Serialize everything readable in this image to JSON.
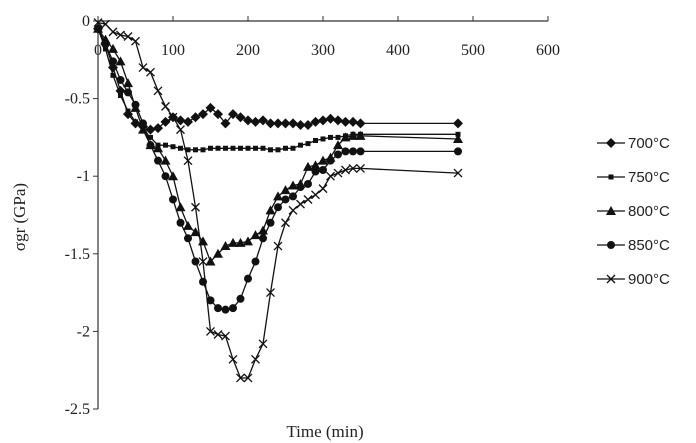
{
  "chart_data": {
    "type": "line",
    "xlabel": "Time (min)",
    "ylabel": "σgr (GPa)",
    "xlim": [
      0,
      600
    ],
    "ylim": [
      -2.5,
      0
    ],
    "xticks": [
      "0",
      "100",
      "200",
      "300",
      "400",
      "500",
      "600"
    ],
    "yticks": [
      "0",
      "-0.5",
      "-1",
      "-1.5",
      "-2",
      "-2.5"
    ],
    "legend_position": "right",
    "series": [
      {
        "name": "700°C",
        "marker": "diamond",
        "points": [
          [
            0,
            -0.05
          ],
          [
            10,
            -0.15
          ],
          [
            20,
            -0.3
          ],
          [
            30,
            -0.45
          ],
          [
            40,
            -0.6
          ],
          [
            50,
            -0.66
          ],
          [
            60,
            -0.68
          ],
          [
            70,
            -0.7
          ],
          [
            80,
            -0.69
          ],
          [
            90,
            -0.65
          ],
          [
            100,
            -0.62
          ],
          [
            110,
            -0.64
          ],
          [
            120,
            -0.65
          ],
          [
            130,
            -0.62
          ],
          [
            140,
            -0.6
          ],
          [
            150,
            -0.56
          ],
          [
            160,
            -0.6
          ],
          [
            170,
            -0.66
          ],
          [
            180,
            -0.6
          ],
          [
            190,
            -0.62
          ],
          [
            200,
            -0.64
          ],
          [
            210,
            -0.65
          ],
          [
            220,
            -0.64
          ],
          [
            230,
            -0.66
          ],
          [
            240,
            -0.66
          ],
          [
            250,
            -0.66
          ],
          [
            260,
            -0.66
          ],
          [
            270,
            -0.67
          ],
          [
            280,
            -0.67
          ],
          [
            290,
            -0.65
          ],
          [
            300,
            -0.64
          ],
          [
            310,
            -0.63
          ],
          [
            320,
            -0.64
          ],
          [
            330,
            -0.65
          ],
          [
            340,
            -0.65
          ],
          [
            350,
            -0.66
          ],
          [
            480,
            -0.66
          ]
        ]
      },
      {
        "name": "750°C",
        "marker": "square",
        "points": [
          [
            0,
            -0.05
          ],
          [
            10,
            -0.18
          ],
          [
            20,
            -0.35
          ],
          [
            30,
            -0.48
          ],
          [
            40,
            -0.58
          ],
          [
            50,
            -0.65
          ],
          [
            60,
            -0.7
          ],
          [
            70,
            -0.75
          ],
          [
            80,
            -0.8
          ],
          [
            90,
            -0.8
          ],
          [
            100,
            -0.81
          ],
          [
            110,
            -0.82
          ],
          [
            120,
            -0.83
          ],
          [
            130,
            -0.83
          ],
          [
            140,
            -0.83
          ],
          [
            150,
            -0.82
          ],
          [
            160,
            -0.82
          ],
          [
            170,
            -0.82
          ],
          [
            180,
            -0.82
          ],
          [
            190,
            -0.82
          ],
          [
            200,
            -0.82
          ],
          [
            210,
            -0.82
          ],
          [
            220,
            -0.82
          ],
          [
            230,
            -0.83
          ],
          [
            240,
            -0.83
          ],
          [
            250,
            -0.82
          ],
          [
            260,
            -0.82
          ],
          [
            270,
            -0.8
          ],
          [
            280,
            -0.79
          ],
          [
            290,
            -0.77
          ],
          [
            300,
            -0.76
          ],
          [
            310,
            -0.75
          ],
          [
            320,
            -0.75
          ],
          [
            330,
            -0.74
          ],
          [
            340,
            -0.73
          ],
          [
            350,
            -0.73
          ],
          [
            480,
            -0.73
          ]
        ]
      },
      {
        "name": "800°C",
        "marker": "triangle",
        "points": [
          [
            0,
            -0.05
          ],
          [
            10,
            -0.12
          ],
          [
            20,
            -0.18
          ],
          [
            30,
            -0.26
          ],
          [
            40,
            -0.4
          ],
          [
            50,
            -0.56
          ],
          [
            60,
            -0.7
          ],
          [
            70,
            -0.8
          ],
          [
            80,
            -0.82
          ],
          [
            90,
            -0.9
          ],
          [
            100,
            -1.0
          ],
          [
            110,
            -1.2
          ],
          [
            120,
            -1.32
          ],
          [
            130,
            -1.36
          ],
          [
            140,
            -1.42
          ],
          [
            150,
            -1.55
          ],
          [
            160,
            -1.5
          ],
          [
            170,
            -1.45
          ],
          [
            180,
            -1.43
          ],
          [
            190,
            -1.43
          ],
          [
            200,
            -1.42
          ],
          [
            210,
            -1.38
          ],
          [
            220,
            -1.35
          ],
          [
            230,
            -1.22
          ],
          [
            240,
            -1.13
          ],
          [
            250,
            -1.09
          ],
          [
            260,
            -1.06
          ],
          [
            270,
            -1.05
          ],
          [
            280,
            -0.94
          ],
          [
            290,
            -0.93
          ],
          [
            300,
            -0.9
          ],
          [
            310,
            -0.88
          ],
          [
            320,
            -0.8
          ],
          [
            330,
            -0.75
          ],
          [
            340,
            -0.74
          ],
          [
            350,
            -0.74
          ],
          [
            480,
            -0.76
          ]
        ]
      },
      {
        "name": "850°C",
        "marker": "circle",
        "points": [
          [
            0,
            -0.05
          ],
          [
            10,
            -0.15
          ],
          [
            20,
            -0.26
          ],
          [
            30,
            -0.38
          ],
          [
            40,
            -0.46
          ],
          [
            50,
            -0.54
          ],
          [
            60,
            -0.66
          ],
          [
            70,
            -0.8
          ],
          [
            80,
            -0.9
          ],
          [
            90,
            -1.0
          ],
          [
            100,
            -1.15
          ],
          [
            110,
            -1.3
          ],
          [
            120,
            -1.4
          ],
          [
            130,
            -1.55
          ],
          [
            140,
            -1.68
          ],
          [
            150,
            -1.8
          ],
          [
            160,
            -1.85
          ],
          [
            170,
            -1.86
          ],
          [
            180,
            -1.85
          ],
          [
            190,
            -1.79
          ],
          [
            200,
            -1.66
          ],
          [
            210,
            -1.55
          ],
          [
            220,
            -1.4
          ],
          [
            230,
            -1.3
          ],
          [
            240,
            -1.2
          ],
          [
            250,
            -1.15
          ],
          [
            260,
            -1.13
          ],
          [
            270,
            -1.07
          ],
          [
            280,
            -1.05
          ],
          [
            290,
            -0.97
          ],
          [
            300,
            -0.96
          ],
          [
            310,
            -0.9
          ],
          [
            320,
            -0.86
          ],
          [
            330,
            -0.84
          ],
          [
            340,
            -0.84
          ],
          [
            350,
            -0.84
          ],
          [
            480,
            -0.84
          ]
        ]
      },
      {
        "name": "900°C",
        "marker": "x",
        "points": [
          [
            0,
            -0.01
          ],
          [
            10,
            -0.02
          ],
          [
            20,
            -0.07
          ],
          [
            30,
            -0.09
          ],
          [
            40,
            -0.1
          ],
          [
            50,
            -0.13
          ],
          [
            60,
            -0.3
          ],
          [
            70,
            -0.33
          ],
          [
            80,
            -0.45
          ],
          [
            90,
            -0.55
          ],
          [
            100,
            -0.62
          ],
          [
            110,
            -0.7
          ],
          [
            120,
            -0.9
          ],
          [
            130,
            -1.2
          ],
          [
            140,
            -1.55
          ],
          [
            150,
            -2.0
          ],
          [
            160,
            -2.02
          ],
          [
            170,
            -2.03
          ],
          [
            180,
            -2.18
          ],
          [
            190,
            -2.3
          ],
          [
            200,
            -2.3
          ],
          [
            210,
            -2.18
          ],
          [
            220,
            -2.08
          ],
          [
            230,
            -1.75
          ],
          [
            240,
            -1.45
          ],
          [
            250,
            -1.3
          ],
          [
            260,
            -1.22
          ],
          [
            270,
            -1.18
          ],
          [
            280,
            -1.15
          ],
          [
            290,
            -1.12
          ],
          [
            300,
            -1.08
          ],
          [
            310,
            -1.0
          ],
          [
            320,
            -0.98
          ],
          [
            330,
            -0.96
          ],
          [
            340,
            -0.95
          ],
          [
            350,
            -0.95
          ],
          [
            480,
            -0.98
          ]
        ]
      }
    ]
  }
}
